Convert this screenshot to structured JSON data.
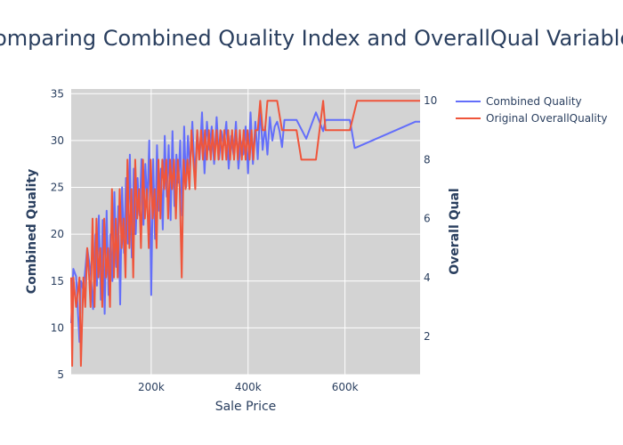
{
  "chart_data": {
    "type": "line",
    "title": "Comparing Combined Quality Index and OverallQual Variables",
    "xlabel": "Sale Price",
    "ylabel": "Combined Quality",
    "y2label": "Overall Qual",
    "xlim": [
      34900,
      755000
    ],
    "ylim": [
      5,
      35.5
    ],
    "y2lim": [
      0.7,
      10.4
    ],
    "xticks": [
      {
        "value": 200000,
        "label": "200k"
      },
      {
        "value": 400000,
        "label": "400k"
      },
      {
        "value": 600000,
        "label": "600k"
      }
    ],
    "yticks": [
      5,
      10,
      15,
      20,
      25,
      30,
      35
    ],
    "y2ticks": [
      2,
      4,
      6,
      8,
      10
    ],
    "grid": true,
    "legend_position": "top-right",
    "series": [
      {
        "name": "Combined Quality",
        "axis": "y",
        "color": "#636efa",
        "x": [
          34900,
          39300,
          45000,
          52000,
          55000,
          60000,
          68000,
          75000,
          80000,
          85000,
          88000,
          92000,
          96000,
          100000,
          104000,
          108000,
          112000,
          116000,
          120000,
          124000,
          128000,
          132000,
          136000,
          140000,
          144000,
          148000,
          152000,
          156000,
          160000,
          164000,
          168000,
          172000,
          176000,
          180000,
          184000,
          188000,
          192000,
          196000,
          200000,
          204000,
          208000,
          212000,
          216000,
          220000,
          224000,
          228000,
          232000,
          236000,
          240000,
          244000,
          248000,
          252000,
          256000,
          260000,
          264000,
          268000,
          272000,
          276000,
          280000,
          285000,
          290000,
          295000,
          300000,
          305000,
          310000,
          315000,
          320000,
          325000,
          330000,
          335000,
          340000,
          345000,
          350000,
          355000,
          360000,
          365000,
          370000,
          375000,
          380000,
          385000,
          390000,
          395000,
          400000,
          405000,
          410000,
          415000,
          420000,
          425000,
          430000,
          435000,
          440000,
          445000,
          450000,
          455000,
          460000,
          465000,
          470000,
          475000,
          480000,
          500000,
          520000,
          540000,
          555000,
          560000,
          580000,
          600000,
          610000,
          620000,
          625000,
          745000,
          755000
        ],
        "y": [
          10.5,
          16.3,
          15.5,
          8.5,
          15.0,
          14.0,
          18.5,
          16.0,
          12.0,
          20.0,
          14.5,
          22.0,
          13.0,
          21.5,
          11.5,
          22.5,
          13.5,
          20.0,
          15.0,
          24.5,
          16.5,
          23.0,
          12.5,
          25.0,
          18.0,
          26.0,
          19.0,
          28.5,
          17.5,
          27.0,
          20.0,
          26.0,
          22.0,
          28.0,
          21.0,
          27.5,
          23.0,
          30.0,
          13.5,
          28.0,
          19.5,
          29.5,
          22.5,
          27.0,
          20.5,
          30.5,
          24.0,
          29.5,
          21.5,
          31.0,
          23.0,
          28.5,
          25.5,
          30.0,
          22.0,
          31.5,
          25.0,
          30.5,
          27.0,
          32.0,
          26.0,
          31.0,
          28.0,
          33.0,
          26.5,
          32.0,
          29.0,
          31.5,
          27.5,
          32.5,
          28.0,
          31.0,
          29.5,
          32.0,
          27.0,
          30.5,
          28.5,
          32.0,
          27.0,
          30.0,
          28.5,
          31.5,
          26.5,
          33.0,
          27.5,
          32.0,
          28.0,
          33.5,
          29.0,
          31.5,
          28.5,
          32.5,
          30.0,
          31.5,
          32.0,
          31.0,
          29.3,
          32.2,
          32.2,
          32.2,
          30.2,
          33.0,
          31.0,
          32.2,
          32.2,
          32.2,
          32.2,
          29.2,
          29.3,
          32.0,
          32.0
        ]
      },
      {
        "name": "Original OverallQuality",
        "axis": "y2",
        "color": "#ef553b",
        "x": [
          34900,
          37000,
          39300,
          45000,
          52000,
          55000,
          60000,
          64000,
          68000,
          72000,
          75000,
          79000,
          83000,
          87000,
          91000,
          95000,
          99000,
          103000,
          107000,
          111000,
          115000,
          119000,
          123000,
          127000,
          131000,
          135000,
          139000,
          143000,
          147000,
          151000,
          155000,
          159000,
          163000,
          167000,
          171000,
          175000,
          179000,
          183000,
          187000,
          191000,
          195000,
          199000,
          203000,
          207000,
          211000,
          215000,
          219000,
          223000,
          227000,
          231000,
          235000,
          239000,
          243000,
          247000,
          251000,
          255000,
          259000,
          263000,
          267000,
          271000,
          275000,
          279000,
          283000,
          287000,
          291000,
          295000,
          299000,
          303000,
          307000,
          311000,
          315000,
          319000,
          323000,
          327000,
          331000,
          335000,
          339000,
          343000,
          347000,
          351000,
          355000,
          359000,
          363000,
          367000,
          371000,
          375000,
          379000,
          383000,
          387000,
          391000,
          395000,
          399000,
          403000,
          407000,
          411000,
          415000,
          420000,
          425000,
          430000,
          435000,
          440000,
          450000,
          460000,
          470000,
          480000,
          490000,
          500000,
          510000,
          540000,
          555000,
          560000,
          580000,
          610000,
          625000,
          745000,
          755000
        ],
        "y": [
          4,
          1,
          4,
          3,
          4,
          1,
          4,
          3,
          5,
          4,
          3,
          6,
          3,
          6,
          4,
          5,
          3,
          6,
          4,
          5,
          3,
          7,
          4,
          6,
          4,
          7,
          5,
          6,
          4,
          8,
          5,
          7,
          4,
          8,
          6,
          7,
          5,
          8,
          6,
          7,
          5,
          8,
          6,
          7,
          5,
          8,
          6,
          8,
          7,
          8,
          6,
          8,
          7,
          8,
          6,
          8,
          7,
          4,
          8,
          7,
          8,
          7,
          9,
          8,
          7,
          9,
          8,
          9,
          8,
          9,
          8,
          9,
          8,
          9,
          8,
          9,
          8,
          9,
          8,
          9,
          8,
          9,
          8,
          9,
          8,
          9,
          8,
          9,
          8,
          9,
          8,
          9,
          8,
          9,
          8,
          9,
          9,
          10,
          9,
          9,
          10,
          10,
          10,
          9,
          9,
          9,
          9,
          8,
          8,
          10,
          9,
          9,
          9,
          10,
          10,
          10
        ]
      }
    ]
  }
}
